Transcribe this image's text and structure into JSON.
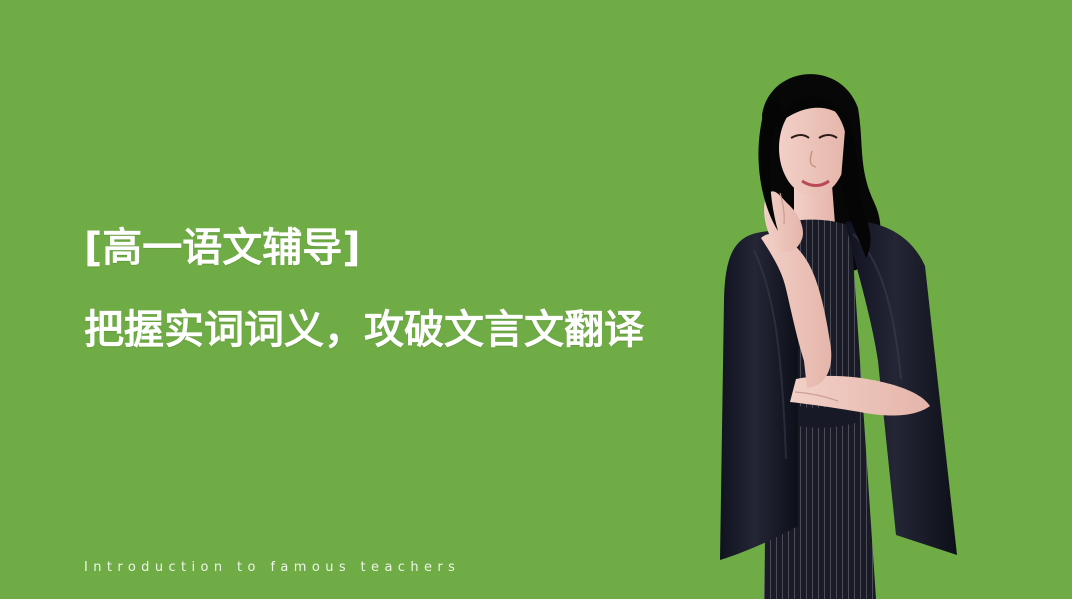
{
  "slide": {
    "title_line_1": "[高一语文辅导]",
    "title_line_2": "把握实词词义，攻破文言文翻译",
    "footer_text": "Introduction to famous teachers"
  },
  "colors": {
    "background": "#6fac45",
    "text": "#ffffff",
    "outfit": "#191b2a"
  },
  "portrait": {
    "icon": "teacher-portrait-icon"
  }
}
